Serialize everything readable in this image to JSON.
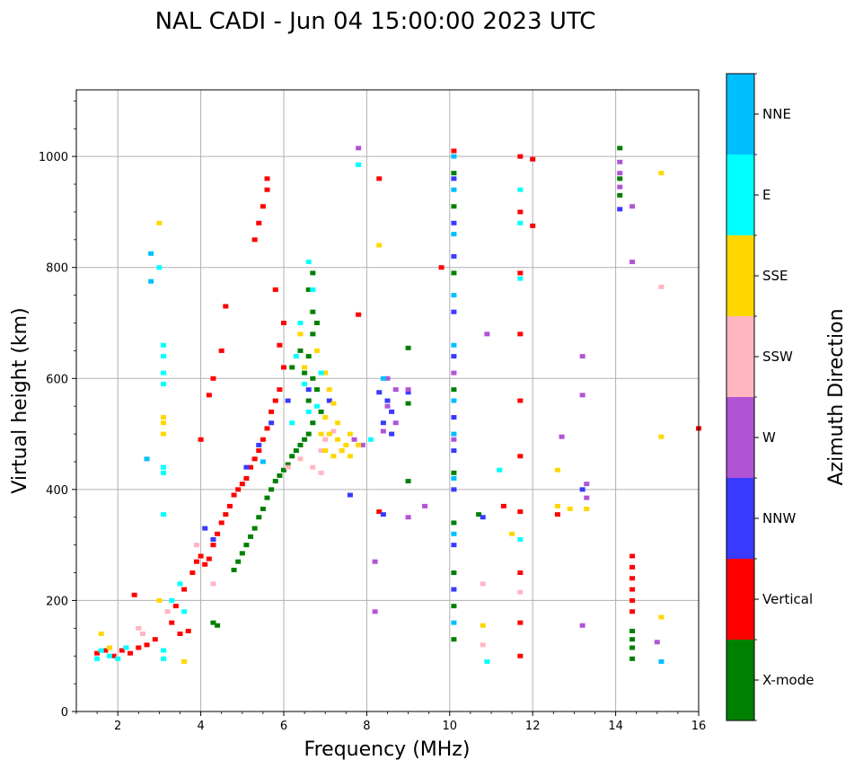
{
  "chart_data": {
    "type": "scatter",
    "title": "NAL CADI - Jun 04 15:00:00 2023 UTC",
    "xlabel": "Frequency (MHz)",
    "ylabel": "Virtual height (km)",
    "xlim": [
      1,
      16
    ],
    "ylim": [
      0,
      1120
    ],
    "xticks": [
      2,
      4,
      6,
      8,
      10,
      12,
      14,
      16
    ],
    "yticks": [
      0,
      200,
      400,
      600,
      800,
      1000
    ],
    "grid": true,
    "colorbar": {
      "label": "Azimuth Direction",
      "categories": [
        {
          "name": "X-mode",
          "color": "#008000"
        },
        {
          "name": "Vertical",
          "color": "#ff0000"
        },
        {
          "name": "NNW",
          "color": "#3a3aff"
        },
        {
          "name": "W",
          "color": "#b054d6"
        },
        {
          "name": "SSW",
          "color": "#ffb6c1"
        },
        {
          "name": "SSE",
          "color": "#ffd700"
        },
        {
          "name": "E",
          "color": "#00ffff"
        },
        {
          "name": "NNE",
          "color": "#00bfff"
        }
      ]
    },
    "series": [
      {
        "name": "X-mode",
        "points": [
          [
            4.8,
            255
          ],
          [
            4.9,
            270
          ],
          [
            5.0,
            285
          ],
          [
            5.1,
            300
          ],
          [
            5.2,
            315
          ],
          [
            5.3,
            330
          ],
          [
            5.4,
            350
          ],
          [
            5.5,
            365
          ],
          [
            5.6,
            385
          ],
          [
            5.7,
            400
          ],
          [
            5.8,
            415
          ],
          [
            5.9,
            425
          ],
          [
            6.0,
            435
          ],
          [
            6.1,
            445
          ],
          [
            6.2,
            460
          ],
          [
            6.3,
            470
          ],
          [
            6.4,
            480
          ],
          [
            6.5,
            490
          ],
          [
            6.6,
            500
          ],
          [
            6.7,
            520
          ],
          [
            6.6,
            560
          ],
          [
            6.7,
            600
          ],
          [
            6.6,
            640
          ],
          [
            6.7,
            680
          ],
          [
            6.7,
            720
          ],
          [
            6.6,
            760
          ],
          [
            6.7,
            790
          ],
          [
            6.2,
            620
          ],
          [
            6.4,
            650
          ],
          [
            6.8,
            700
          ],
          [
            6.9,
            540
          ],
          [
            6.8,
            580
          ],
          [
            6.5,
            610
          ],
          [
            4.3,
            160
          ],
          [
            4.4,
            155
          ],
          [
            9.0,
            415
          ],
          [
            9.0,
            555
          ],
          [
            9.0,
            655
          ],
          [
            10.1,
            970
          ],
          [
            10.1,
            910
          ],
          [
            10.1,
            790
          ],
          [
            10.1,
            580
          ],
          [
            10.1,
            430
          ],
          [
            10.1,
            340
          ],
          [
            10.1,
            250
          ],
          [
            10.1,
            190
          ],
          [
            10.1,
            130
          ],
          [
            10.7,
            355
          ],
          [
            14.1,
            1015
          ],
          [
            14.1,
            960
          ],
          [
            14.1,
            930
          ],
          [
            14.4,
            145
          ],
          [
            14.4,
            130
          ],
          [
            14.4,
            115
          ],
          [
            14.4,
            95
          ]
        ]
      },
      {
        "name": "Vertical",
        "points": [
          [
            1.5,
            105
          ],
          [
            1.7,
            110
          ],
          [
            1.9,
            100
          ],
          [
            2.1,
            110
          ],
          [
            2.3,
            105
          ],
          [
            2.5,
            115
          ],
          [
            2.7,
            120
          ],
          [
            2.9,
            130
          ],
          [
            3.3,
            160
          ],
          [
            3.5,
            140
          ],
          [
            3.7,
            145
          ],
          [
            3.4,
            190
          ],
          [
            3.6,
            220
          ],
          [
            3.8,
            250
          ],
          [
            3.9,
            270
          ],
          [
            4.0,
            280
          ],
          [
            4.1,
            265
          ],
          [
            4.2,
            275
          ],
          [
            4.3,
            300
          ],
          [
            4.4,
            320
          ],
          [
            4.5,
            340
          ],
          [
            4.6,
            355
          ],
          [
            4.7,
            370
          ],
          [
            4.8,
            390
          ],
          [
            4.9,
            400
          ],
          [
            5.0,
            410
          ],
          [
            5.1,
            420
          ],
          [
            5.2,
            440
          ],
          [
            5.3,
            455
          ],
          [
            5.4,
            470
          ],
          [
            5.5,
            490
          ],
          [
            5.6,
            510
          ],
          [
            5.7,
            540
          ],
          [
            5.8,
            560
          ],
          [
            5.9,
            580
          ],
          [
            6.0,
            620
          ],
          [
            5.9,
            660
          ],
          [
            6.0,
            700
          ],
          [
            5.8,
            760
          ],
          [
            5.6,
            940
          ],
          [
            5.6,
            960
          ],
          [
            5.5,
            910
          ],
          [
            5.4,
            880
          ],
          [
            5.3,
            850
          ],
          [
            4.6,
            730
          ],
          [
            4.5,
            650
          ],
          [
            4.3,
            600
          ],
          [
            4.2,
            570
          ],
          [
            4.0,
            490
          ],
          [
            2.4,
            210
          ],
          [
            8.3,
            960
          ],
          [
            8.3,
            360
          ],
          [
            7.8,
            715
          ],
          [
            9.8,
            800
          ],
          [
            10.1,
            1010
          ],
          [
            11.3,
            370
          ],
          [
            11.7,
            1000
          ],
          [
            11.7,
            900
          ],
          [
            11.7,
            790
          ],
          [
            11.7,
            680
          ],
          [
            11.7,
            560
          ],
          [
            11.7,
            460
          ],
          [
            11.7,
            360
          ],
          [
            11.7,
            250
          ],
          [
            11.7,
            160
          ],
          [
            11.7,
            100
          ],
          [
            12.0,
            995
          ],
          [
            12.0,
            875
          ],
          [
            12.6,
            355
          ],
          [
            14.4,
            280
          ],
          [
            14.4,
            260
          ],
          [
            14.4,
            240
          ],
          [
            14.4,
            220
          ],
          [
            14.4,
            200
          ],
          [
            14.4,
            180
          ],
          [
            16.0,
            510
          ]
        ]
      },
      {
        "name": "NNW",
        "points": [
          [
            4.1,
            330
          ],
          [
            4.3,
            310
          ],
          [
            5.1,
            440
          ],
          [
            5.4,
            480
          ],
          [
            5.7,
            520
          ],
          [
            6.1,
            560
          ],
          [
            6.6,
            580
          ],
          [
            7.1,
            560
          ],
          [
            7.6,
            390
          ],
          [
            8.3,
            575
          ],
          [
            8.5,
            560
          ],
          [
            8.6,
            540
          ],
          [
            8.4,
            520
          ],
          [
            8.6,
            500
          ],
          [
            8.4,
            355
          ],
          [
            9.0,
            575
          ],
          [
            10.1,
            960
          ],
          [
            10.1,
            880
          ],
          [
            10.1,
            820
          ],
          [
            10.1,
            720
          ],
          [
            10.1,
            640
          ],
          [
            10.1,
            530
          ],
          [
            10.1,
            470
          ],
          [
            10.1,
            400
          ],
          [
            10.1,
            300
          ],
          [
            10.1,
            220
          ],
          [
            10.8,
            350
          ],
          [
            14.1,
            905
          ],
          [
            13.2,
            400
          ]
        ]
      },
      {
        "name": "W",
        "points": [
          [
            7.8,
            1015
          ],
          [
            8.2,
            270
          ],
          [
            8.2,
            180
          ],
          [
            8.5,
            600
          ],
          [
            8.7,
            580
          ],
          [
            8.5,
            550
          ],
          [
            8.7,
            520
          ],
          [
            8.4,
            505
          ],
          [
            9.0,
            350
          ],
          [
            9.0,
            580
          ],
          [
            9.4,
            370
          ],
          [
            10.1,
            610
          ],
          [
            10.1,
            490
          ],
          [
            10.9,
            680
          ],
          [
            12.7,
            495
          ],
          [
            13.2,
            640
          ],
          [
            13.2,
            570
          ],
          [
            13.3,
            410
          ],
          [
            13.3,
            385
          ],
          [
            13.2,
            155
          ],
          [
            14.1,
            990
          ],
          [
            14.1,
            970
          ],
          [
            14.1,
            945
          ],
          [
            14.4,
            910
          ],
          [
            14.4,
            810
          ],
          [
            15.0,
            125
          ],
          [
            7.7,
            490
          ],
          [
            7.9,
            480
          ]
        ]
      },
      {
        "name": "SSW",
        "points": [
          [
            2.5,
            150
          ],
          [
            2.6,
            140
          ],
          [
            3.2,
            180
          ],
          [
            3.9,
            300
          ],
          [
            6.1,
            440
          ],
          [
            6.4,
            455
          ],
          [
            6.9,
            470
          ],
          [
            7.0,
            490
          ],
          [
            7.2,
            505
          ],
          [
            7.4,
            470
          ],
          [
            6.7,
            440
          ],
          [
            6.9,
            430
          ],
          [
            10.8,
            230
          ],
          [
            10.8,
            120
          ],
          [
            11.7,
            215
          ],
          [
            15.1,
            765
          ],
          [
            4.3,
            230
          ]
        ]
      },
      {
        "name": "SSE",
        "points": [
          [
            6.4,
            680
          ],
          [
            6.5,
            620
          ],
          [
            6.8,
            650
          ],
          [
            7.0,
            610
          ],
          [
            7.1,
            580
          ],
          [
            7.2,
            555
          ],
          [
            7.0,
            530
          ],
          [
            7.3,
            520
          ],
          [
            7.1,
            500
          ],
          [
            7.3,
            490
          ],
          [
            7.5,
            480
          ],
          [
            7.4,
            470
          ],
          [
            7.6,
            460
          ],
          [
            7.2,
            460
          ],
          [
            7.0,
            470
          ],
          [
            7.6,
            500
          ],
          [
            7.8,
            480
          ],
          [
            6.9,
            500
          ],
          [
            8.3,
            840
          ],
          [
            3.0,
            880
          ],
          [
            3.1,
            530
          ],
          [
            3.1,
            520
          ],
          [
            3.1,
            500
          ],
          [
            3.0,
            200
          ],
          [
            3.6,
            90
          ],
          [
            10.8,
            155
          ],
          [
            11.5,
            320
          ],
          [
            12.6,
            435
          ],
          [
            12.6,
            370
          ],
          [
            12.9,
            365
          ],
          [
            13.3,
            365
          ],
          [
            15.1,
            970
          ],
          [
            15.1,
            495
          ],
          [
            15.1,
            170
          ],
          [
            1.6,
            140
          ],
          [
            1.8,
            115
          ]
        ]
      },
      {
        "name": "E",
        "points": [
          [
            3.1,
            660
          ],
          [
            3.1,
            640
          ],
          [
            3.1,
            610
          ],
          [
            3.1,
            590
          ],
          [
            3.1,
            440
          ],
          [
            3.1,
            430
          ],
          [
            3.1,
            355
          ],
          [
            3.1,
            110
          ],
          [
            3.1,
            95
          ],
          [
            1.5,
            95
          ],
          [
            1.6,
            110
          ],
          [
            1.8,
            100
          ],
          [
            2.0,
            95
          ],
          [
            2.2,
            115
          ],
          [
            3.3,
            200
          ],
          [
            3.5,
            230
          ],
          [
            3.6,
            180
          ],
          [
            6.6,
            810
          ],
          [
            6.7,
            760
          ],
          [
            6.4,
            700
          ],
          [
            6.3,
            640
          ],
          [
            6.5,
            590
          ],
          [
            6.6,
            540
          ],
          [
            6.8,
            550
          ],
          [
            6.9,
            610
          ],
          [
            6.2,
            520
          ],
          [
            7.8,
            985
          ],
          [
            8.1,
            490
          ],
          [
            10.9,
            90
          ],
          [
            11.2,
            435
          ],
          [
            11.7,
            940
          ],
          [
            11.7,
            880
          ],
          [
            11.7,
            780
          ],
          [
            11.7,
            310
          ],
          [
            3.0,
            800
          ]
        ]
      },
      {
        "name": "NNE",
        "points": [
          [
            2.8,
            825
          ],
          [
            2.8,
            775
          ],
          [
            2.7,
            455
          ],
          [
            10.1,
            1000
          ],
          [
            10.1,
            940
          ],
          [
            10.1,
            860
          ],
          [
            10.1,
            750
          ],
          [
            10.1,
            660
          ],
          [
            10.1,
            560
          ],
          [
            10.1,
            500
          ],
          [
            10.1,
            420
          ],
          [
            10.1,
            320
          ],
          [
            10.1,
            160
          ],
          [
            15.1,
            90
          ],
          [
            8.4,
            600
          ],
          [
            5.5,
            450
          ]
        ]
      }
    ]
  }
}
